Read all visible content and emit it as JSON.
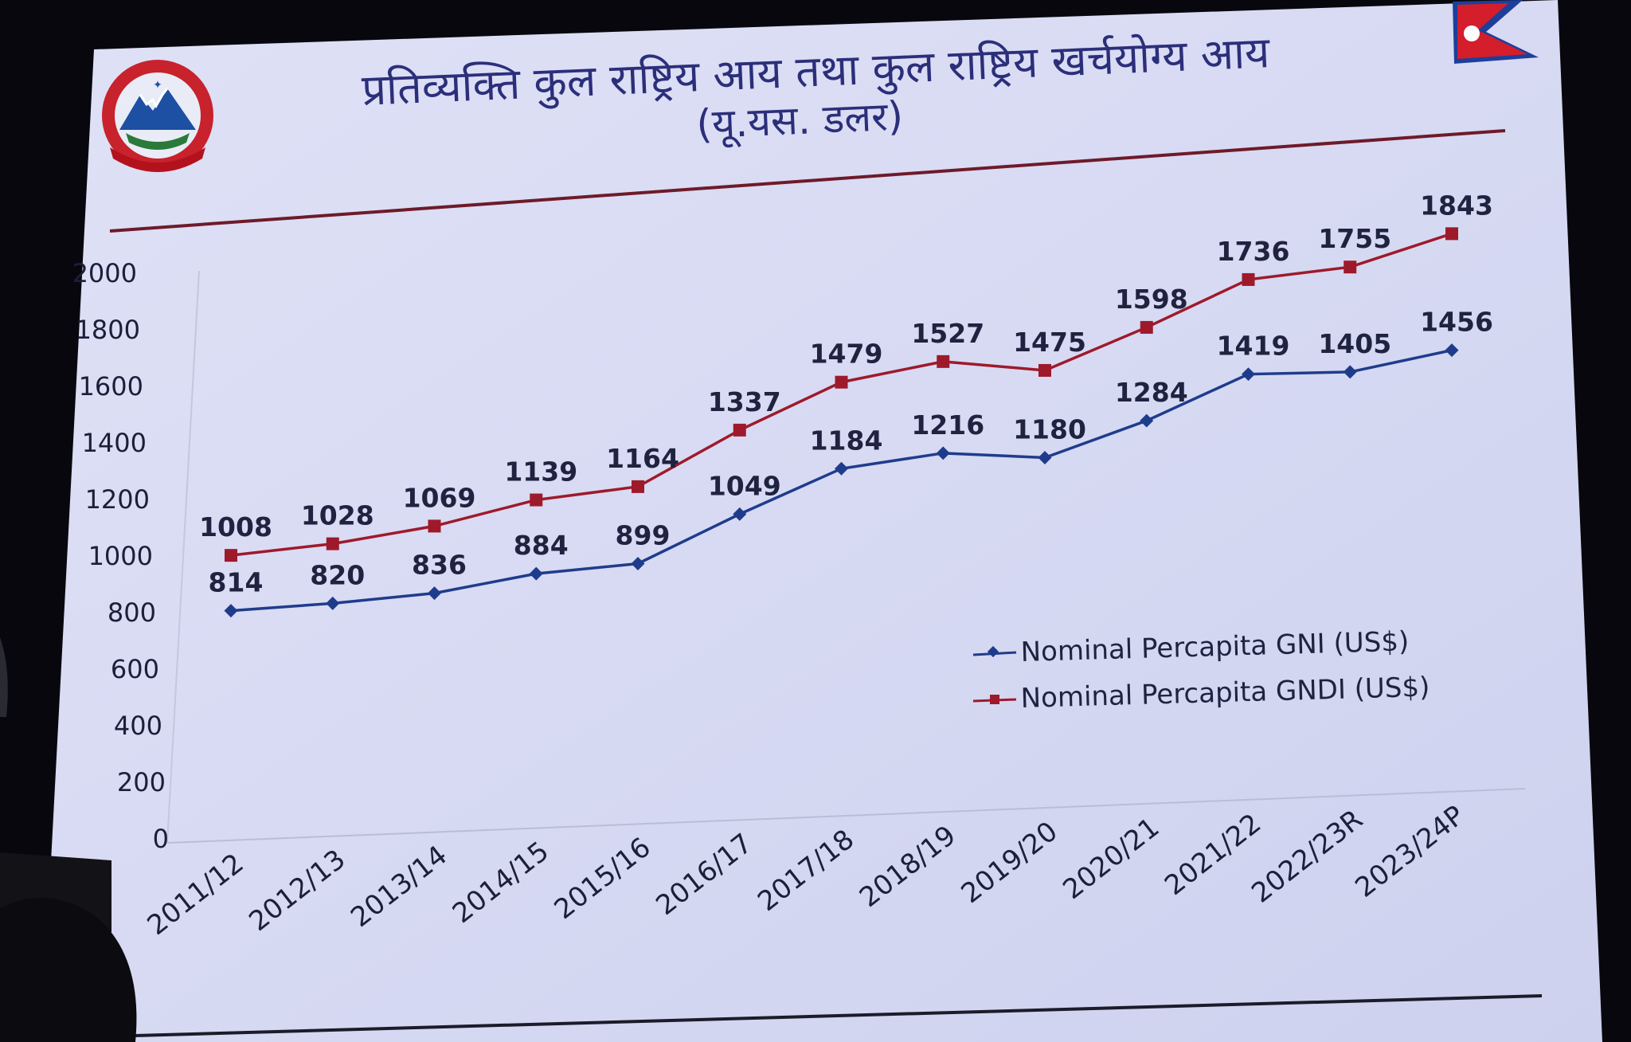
{
  "slide": {
    "title_line1": "प्रतिव्यक्ति कुल राष्ट्रिय आय तथा कुल राष्ट्रिय खर्चयोग्य आय",
    "title_line2": "(यू.यस. डलर)",
    "emblem": "nepal-government-emblem",
    "flag": "nepal-flag",
    "colors": {
      "screen_bg": "#d9dcf3",
      "title_text": "#2b2f7a",
      "rule_line": "#6e1a2a",
      "gni_series": "#1f3c8c",
      "gndi_series": "#9e1a2b",
      "axis_text": "#1b1f3a",
      "label_text": "#1f2340"
    }
  },
  "chart_data": {
    "type": "line",
    "categories": [
      "2011/12",
      "2012/13",
      "2013/14",
      "2014/15",
      "2015/16",
      "2016/17",
      "2017/18",
      "2018/19",
      "2019/20",
      "2020/21",
      "2021/22",
      "2022/23R",
      "2023/24P"
    ],
    "series": [
      {
        "name": "Nominal Percapita GNI (US$)",
        "marker": "diamond",
        "color": "#1f3c8c",
        "values": [
          814,
          820,
          836,
          884,
          899,
          1049,
          1184,
          1216,
          1180,
          1284,
          1419,
          1405,
          1456
        ]
      },
      {
        "name": "Nominal Percapita GNDI (US$)",
        "marker": "square",
        "color": "#9e1a2b",
        "values": [
          1008,
          1028,
          1069,
          1139,
          1164,
          1337,
          1479,
          1527,
          1475,
          1598,
          1736,
          1755,
          1843
        ]
      }
    ],
    "y_ticks": [
      0,
      200,
      400,
      600,
      800,
      1000,
      1200,
      1400,
      1600,
      1800,
      2000
    ],
    "ylim": [
      0,
      2000
    ],
    "grid": false,
    "legend_position": "center-right",
    "data_labels": true
  }
}
